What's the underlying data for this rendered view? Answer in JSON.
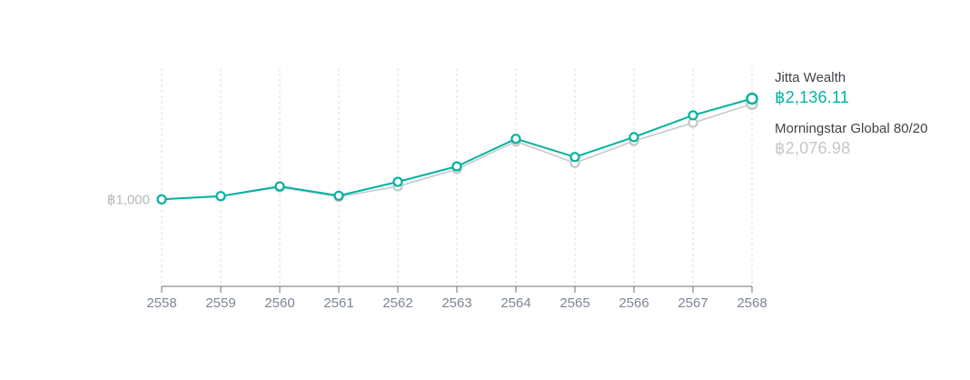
{
  "chart_data": {
    "type": "line",
    "title": "",
    "categories": [
      "2558",
      "2559",
      "2560",
      "2561",
      "2562",
      "2563",
      "2564",
      "2565",
      "2566",
      "2567",
      "2568"
    ],
    "y_reference": {
      "value": 1000,
      "label": "฿1,000"
    },
    "grid": "vertical-dashed",
    "legend_position": "right",
    "ylim": [
      0,
      2400
    ],
    "series": [
      {
        "name": "Jitta Wealth",
        "color": "#00b3a0",
        "current_value_label": "฿2,136.11",
        "values": [
          1000,
          1037,
          1147,
          1041,
          1198,
          1372,
          1683,
          1478,
          1703,
          1949,
          2136.11
        ]
      },
      {
        "name": "Morningstar Global 80/20",
        "color": "#c4c7ca",
        "current_value_label": "฿2,076.98",
        "values": [
          1000,
          1034,
          1136,
          1029,
          1147,
          1341,
          1654,
          1410,
          1659,
          1864,
          2076.98
        ]
      }
    ]
  },
  "legend": {
    "items": [
      {
        "name": "Jitta Wealth",
        "value": "฿2,136.11"
      },
      {
        "name": "Morningstar Global 80/20",
        "value": "฿2,076.98"
      }
    ]
  },
  "colors": {
    "axis_line": "#717171",
    "x_label": "#7d8794",
    "y_label": "#b3b8bd",
    "gridline": "#dcdcdc"
  }
}
